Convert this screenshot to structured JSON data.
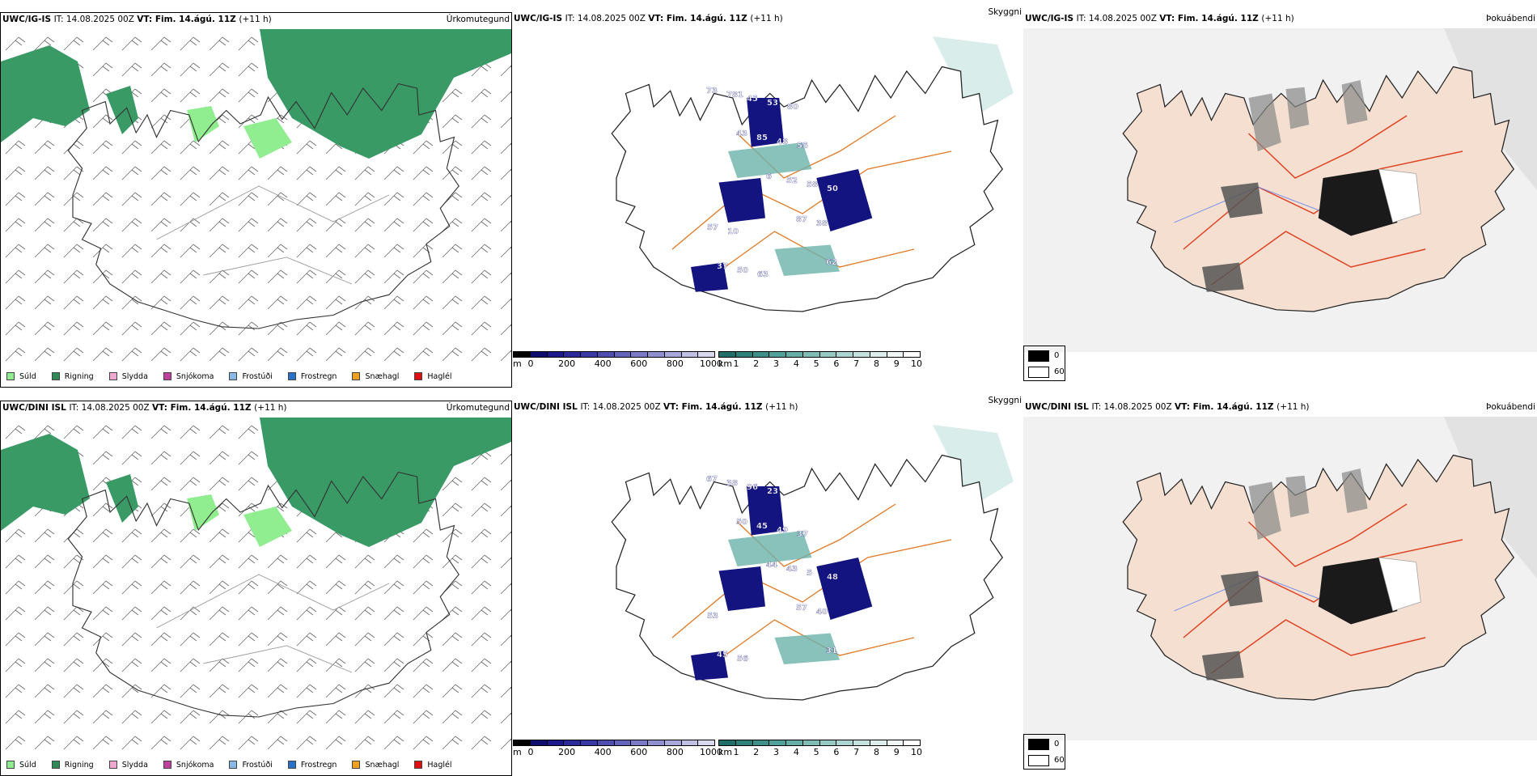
{
  "rows": [
    {
      "model": "UWC/IG-IS",
      "it_label": "IT:",
      "it_value": "14.08.2025 00Z",
      "vt_label": "VT:",
      "vt_value": "Fim. 14.ágú. 11Z",
      "lead": "(+11 h)"
    },
    {
      "model": "UWC/DINI ISL",
      "it_label": "IT:",
      "it_value": "14.08.2025 00Z",
      "vt_label": "VT:",
      "vt_value": "Fim. 14.ágú. 11Z",
      "lead": "(+11 h)"
    }
  ],
  "panel_titles": {
    "precip": "Úrkomutegund",
    "cloud": "Skyggni",
    "fog": "Þokuábendi"
  },
  "precip_legend": [
    {
      "label": "Súld",
      "color": "#90ee90"
    },
    {
      "label": "Rigning",
      "color": "#2e8b57"
    },
    {
      "label": "Slydda",
      "color": "#f0a8d0"
    },
    {
      "label": "Snjókoma",
      "color": "#c040a0"
    },
    {
      "label": "Frostúði",
      "color": "#8ab8e8"
    },
    {
      "label": "Frostregn",
      "color": "#2a70c8"
    },
    {
      "label": "Snæhagl",
      "color": "#f0a020"
    },
    {
      "label": "Haglél",
      "color": "#e01010"
    }
  ],
  "height_bar": {
    "unit": "m",
    "ticks": [
      "0",
      "200",
      "400",
      "600",
      "800",
      "1000"
    ],
    "colors": [
      "#000000",
      "#0d0d6e",
      "#1a1a8c",
      "#2a2a9a",
      "#3a3aa6",
      "#4e4eb0",
      "#6464bc",
      "#7a7ac6",
      "#9090d0",
      "#a8a8da",
      "#c0c0e4",
      "#d8d8ee"
    ]
  },
  "visibility_bar": {
    "unit": "km",
    "ticks": [
      "1",
      "2",
      "3",
      "4",
      "5",
      "6",
      "7",
      "8",
      "9",
      "10"
    ],
    "colors": [
      "#1f6e6a",
      "#2e807a",
      "#3f908a",
      "#52a09a",
      "#67aea8",
      "#7ebcb6",
      "#95c9c4",
      "#acd6d2",
      "#c4e3e0",
      "#dcefed",
      "#f0f8f7",
      "#ffffff"
    ]
  },
  "fog_legend": {
    "black_label": "0",
    "white_label": "60"
  },
  "map_labels": {
    "row1": [
      "73",
      "43",
      "6",
      "87",
      "62",
      "781",
      "85",
      "52",
      "38",
      "37",
      "45",
      "48",
      "58",
      "57",
      "50",
      "53",
      "55",
      "50",
      "10",
      "63",
      "80"
    ],
    "row2": [
      "67",
      "50",
      "44",
      "57",
      "31",
      "38",
      "45",
      "43",
      "40",
      "45",
      "96",
      "49",
      "5",
      "53",
      "56",
      "23",
      "37",
      "48"
    ]
  },
  "icons": {
    "wind_barbs": "wind-barb-icon",
    "glacier": "glacier-outline-icon"
  }
}
